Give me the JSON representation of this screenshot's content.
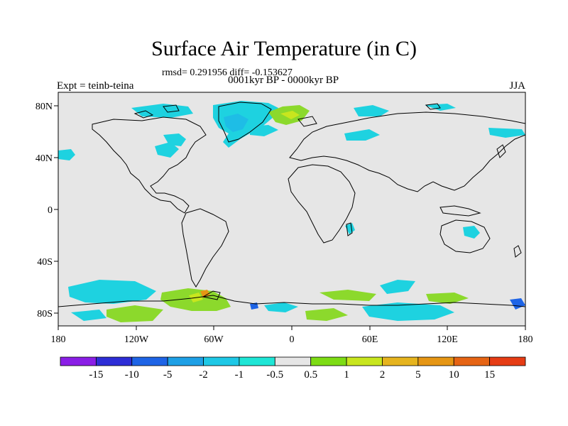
{
  "title": "Surface Air Temperature (in C)",
  "stats_line": "rmsd= 0.291956 diff= -0.153627",
  "subtitle": "0001kyr BP - 0000kyr BP",
  "experiment": "Expt = teinb-teina",
  "season": "JJA",
  "map": {
    "projection": "cylindrical-equidistant",
    "lon_range": [
      -180,
      180
    ],
    "lat_range": [
      -90,
      90
    ],
    "land_color": "#e6e6e6",
    "coastline_color": "#000000",
    "x_ticks": [
      {
        "value": -180,
        "label": "180"
      },
      {
        "value": -120,
        "label": "120W"
      },
      {
        "value": -60,
        "label": "60W"
      },
      {
        "value": 0,
        "label": "0"
      },
      {
        "value": 60,
        "label": "60E"
      },
      {
        "value": 120,
        "label": "120E"
      },
      {
        "value": 180,
        "label": "180"
      }
    ],
    "y_ticks": [
      {
        "value": 80,
        "label": "80N"
      },
      {
        "value": 40,
        "label": "40N"
      },
      {
        "value": 0,
        "label": "0"
      },
      {
        "value": -40,
        "label": "40S"
      },
      {
        "value": -80,
        "label": "80S"
      }
    ]
  },
  "colorbar": {
    "colors": [
      "#8a1ee6",
      "#2d2dd6",
      "#1e64e6",
      "#1ea0e6",
      "#1ec8e6",
      "#1ee6d6",
      "#e6e6e6",
      "#7ddc14",
      "#c8e61e",
      "#e6b41e",
      "#e69614",
      "#e66414",
      "#e63c14"
    ],
    "labels": [
      "-15",
      "-10",
      "-5",
      "-2",
      "-1",
      "-0.5",
      "0.5",
      "1",
      "2",
      "5",
      "10",
      "15"
    ]
  }
}
